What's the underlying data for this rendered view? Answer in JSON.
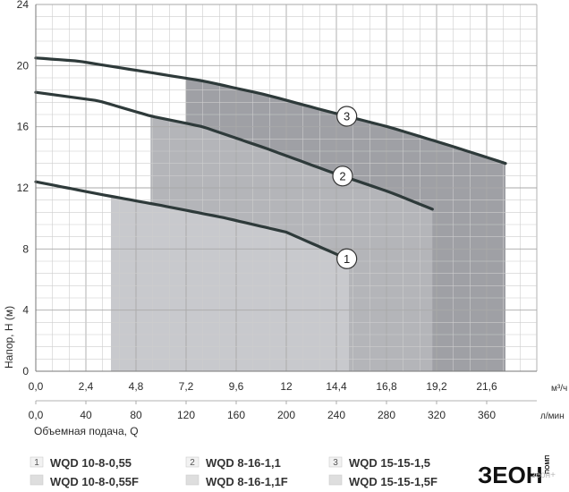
{
  "chart_data": {
    "type": "line",
    "x_unit_primary": "м³/ч",
    "x_unit_secondary": "л/мин",
    "xlabel": "Объемная подача, Q",
    "ylabel": "Напор, H (м)",
    "xlim": [
      0,
      24
    ],
    "ylim": [
      0,
      24
    ],
    "x_ticks_m3h": [
      "0,0",
      "2,4",
      "4,8",
      "7,2",
      "9,6",
      "12",
      "14,4",
      "16,8",
      "19,2",
      "21,6"
    ],
    "x_ticks_lmin": [
      "0,0",
      "40",
      "80",
      "120",
      "160",
      "200",
      "240",
      "280",
      "320",
      "360"
    ],
    "y_ticks": [
      "0",
      "4",
      "8",
      "12",
      "16",
      "20",
      "24"
    ],
    "series": [
      {
        "name": "1",
        "color": "#2e3a3a",
        "points": [
          [
            0,
            12.4
          ],
          [
            3,
            11.6
          ],
          [
            6,
            10.85
          ],
          [
            9,
            10.05
          ],
          [
            12,
            9.1
          ],
          [
            15,
            7.3
          ]
        ],
        "operating_range": [
          3.6,
          15.0
        ],
        "region_fill": "#c8c9cd",
        "marker_at": 14.9
      },
      {
        "name": "2",
        "color": "#2e3a3a",
        "points": [
          [
            0,
            18.25
          ],
          [
            3,
            17.7
          ],
          [
            5.5,
            16.7
          ],
          [
            8,
            16.0
          ],
          [
            11,
            14.6
          ],
          [
            14,
            13.1
          ],
          [
            17,
            11.7
          ],
          [
            19,
            10.6
          ]
        ],
        "operating_range": [
          5.5,
          19.0
        ],
        "region_fill": "#b4b5b9",
        "marker_at": 14.7
      },
      {
        "name": "3",
        "color": "#2e3a3a",
        "points": [
          [
            0,
            20.5
          ],
          [
            2,
            20.3
          ],
          [
            5,
            19.65
          ],
          [
            8,
            19.0
          ],
          [
            11,
            18.1
          ],
          [
            14,
            17.0
          ],
          [
            17,
            15.95
          ],
          [
            20,
            14.7
          ],
          [
            22.5,
            13.6
          ]
        ],
        "operating_range": [
          7.2,
          22.5
        ],
        "region_fill": "#9fa0a5",
        "marker_at": 14.9
      }
    ]
  },
  "legend": [
    {
      "num": "1",
      "models": [
        "WQD 10-8-0,55",
        "WQD 10-8-0,55F"
      ]
    },
    {
      "num": "2",
      "models": [
        "WQD 8-16-1,1",
        "WQD 8-16-1,1F"
      ]
    },
    {
      "num": "3",
      "models": [
        "WQD 15-15-1,5",
        "WQD 15-15-1,5F"
      ]
    }
  ],
  "brand": {
    "logo_text": "ЗЕОН",
    "logo_sub": "ПОМП",
    "watermark": "зеон+"
  }
}
